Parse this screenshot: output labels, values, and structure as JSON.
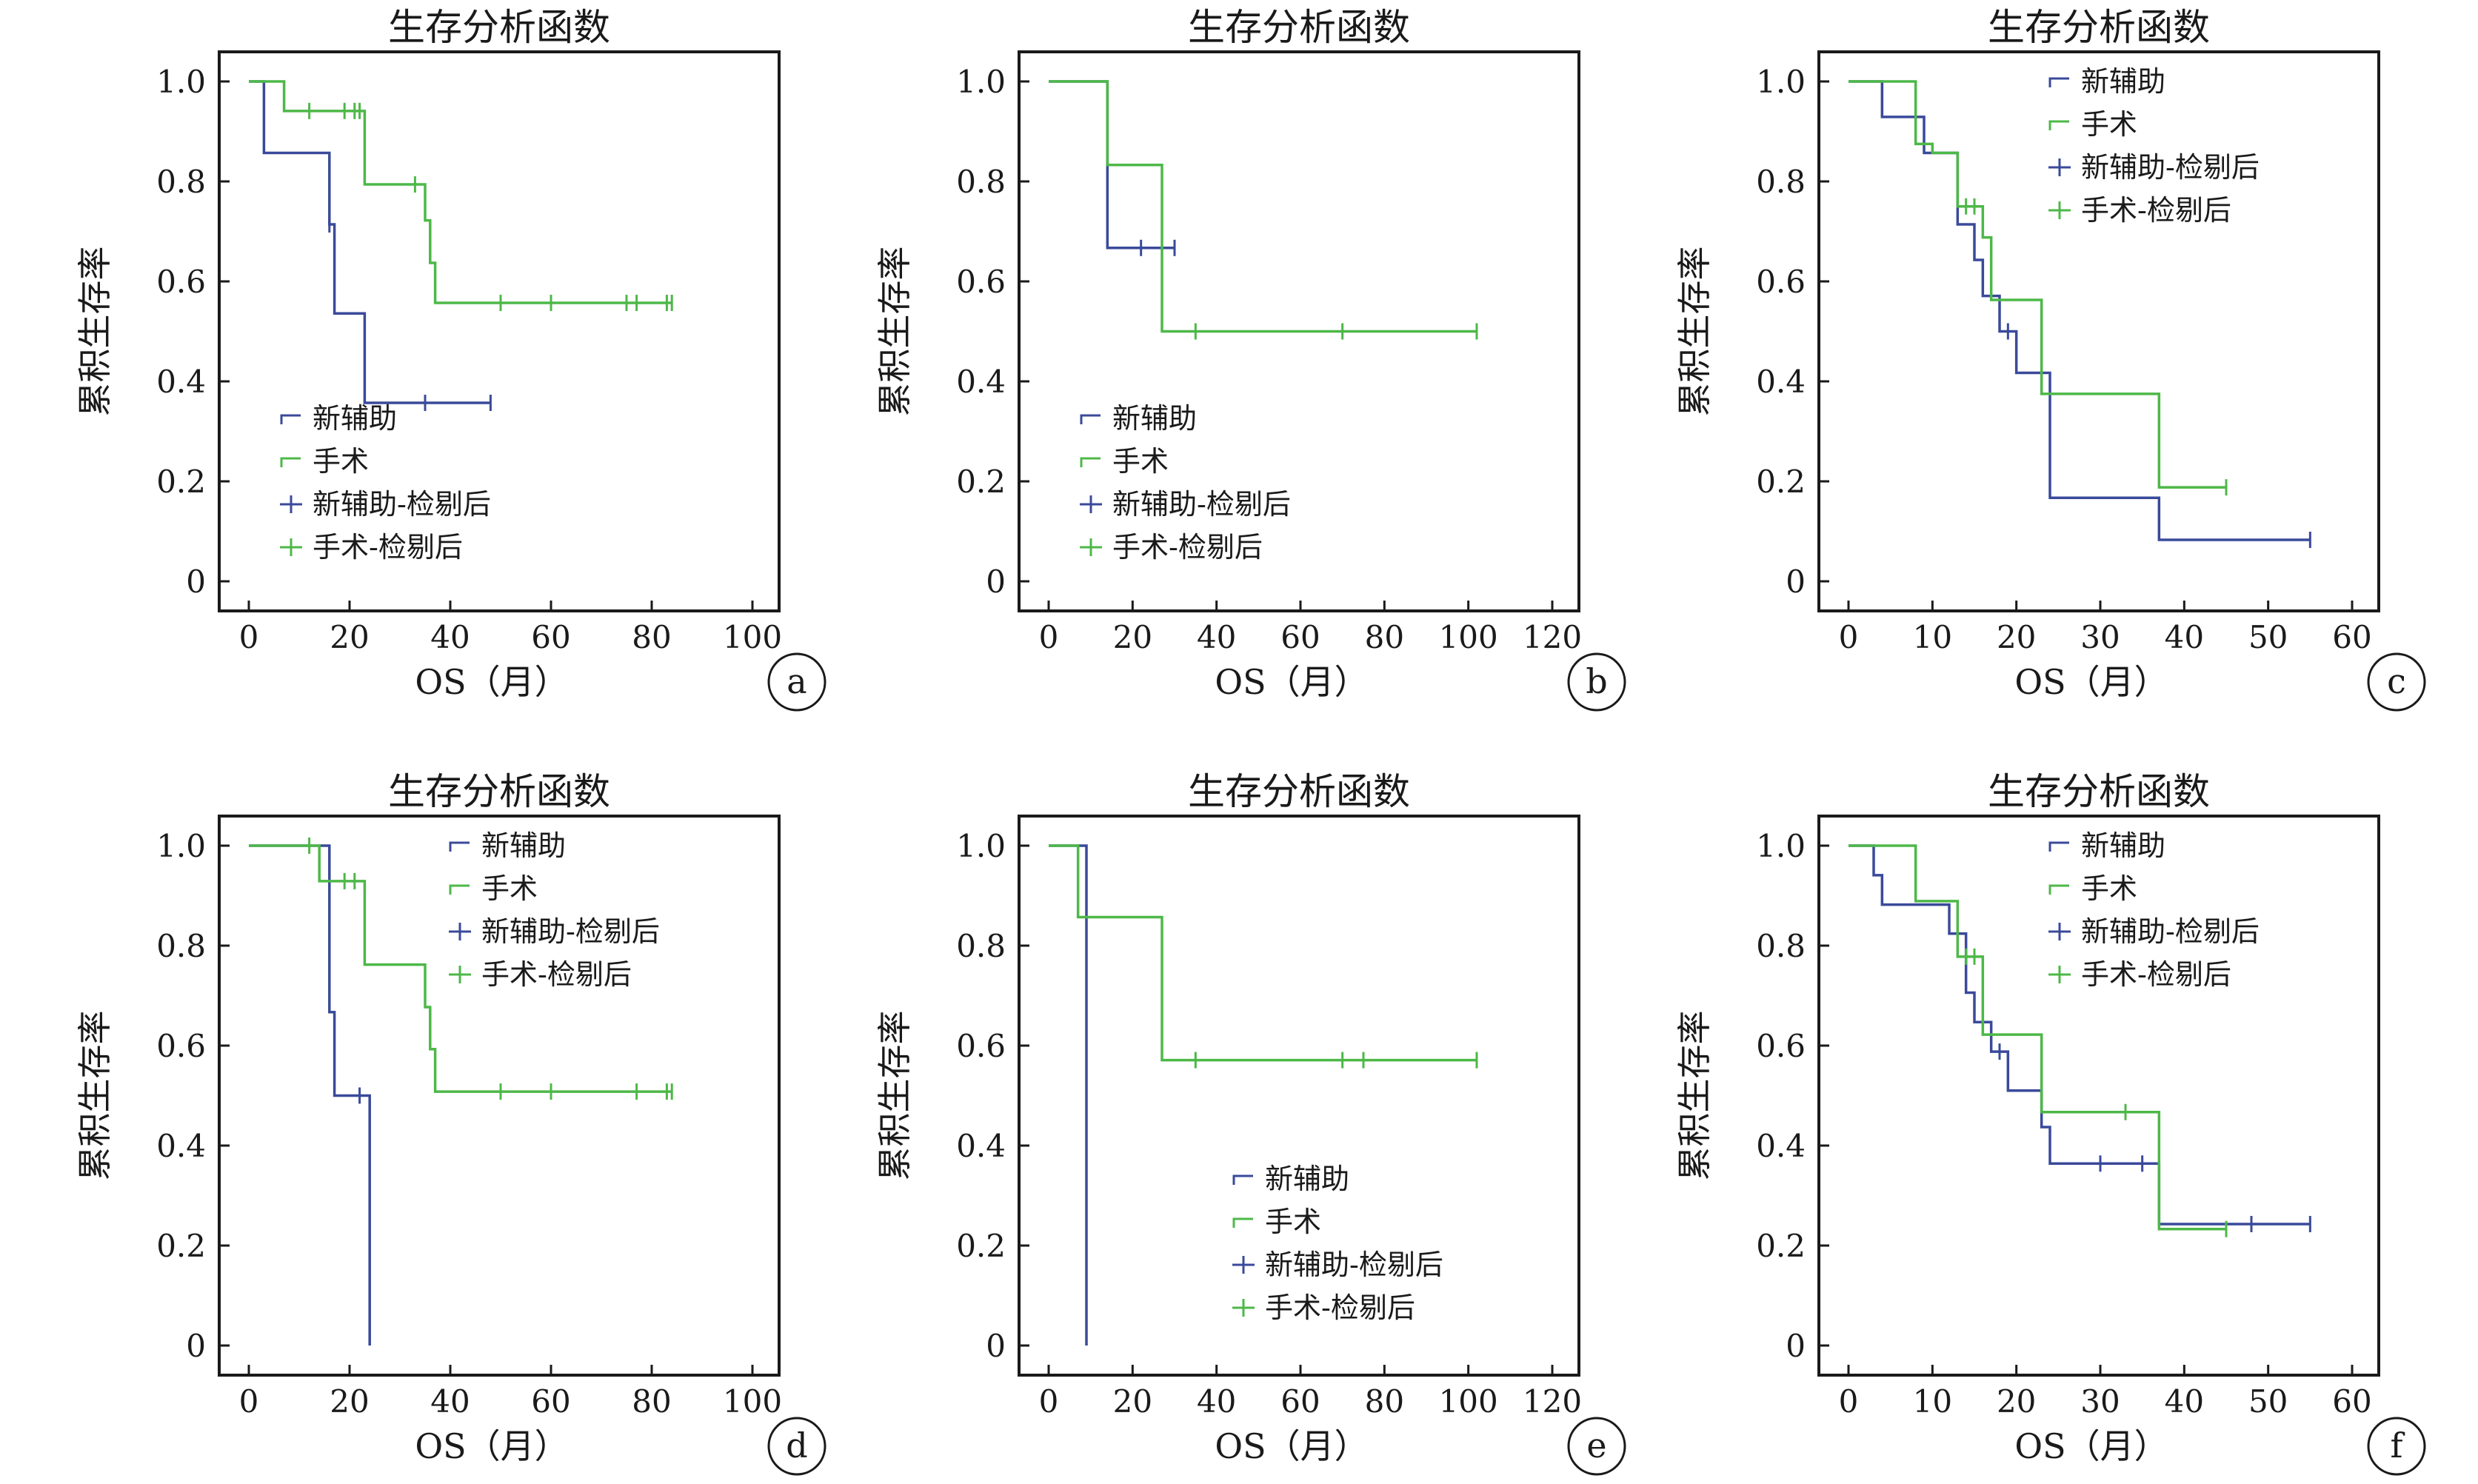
{
  "colors": {
    "series_blue": "#3a4a9a",
    "series_green": "#4db848",
    "text": "#1a1a1a"
  },
  "chart_data": [
    {
      "type": "line",
      "label": "a",
      "title": "生存分析函数",
      "xlabel": "OS（月）",
      "ylabel": "累积生存率",
      "xlim": [
        0,
        100
      ],
      "ylim": [
        0,
        1
      ],
      "xticks": [
        "0",
        "20",
        "40",
        "60",
        "80",
        "100"
      ],
      "yticks": [
        "0",
        "0.2",
        "0.4",
        "0.6",
        "0.8",
        "1.0"
      ],
      "legend": [
        "新辅助",
        "手术",
        "新辅助-检剔后",
        "手术-检剔后"
      ],
      "legend_position": "bottom-left",
      "series": [
        {
          "name": "新辅助",
          "step_x": [
            0,
            3,
            16,
            17,
            23,
            48
          ],
          "step_y": [
            1.0,
            0.857,
            0.714,
            0.536,
            0.357,
            0.357
          ],
          "censored_x": [
            16,
            35,
            48
          ],
          "censored_y": [
            0.714,
            0.357,
            0.357
          ]
        },
        {
          "name": "手术",
          "step_x": [
            0,
            7,
            23,
            35,
            36,
            37,
            84
          ],
          "step_y": [
            1.0,
            0.941,
            0.794,
            0.722,
            0.637,
            0.557,
            0.557
          ],
          "censored_x": [
            12,
            19,
            21,
            22,
            33,
            50,
            60,
            75,
            77,
            83,
            84
          ],
          "censored_y": [
            0.941,
            0.941,
            0.941,
            0.941,
            0.794,
            0.557,
            0.557,
            0.557,
            0.557,
            0.557,
            0.557
          ]
        }
      ]
    },
    {
      "type": "line",
      "label": "b",
      "title": "生存分析函数",
      "xlabel": "OS（月）",
      "ylabel": "累积生存率",
      "xlim": [
        0,
        120
      ],
      "ylim": [
        0,
        1
      ],
      "xticks": [
        "0",
        "20",
        "40",
        "60",
        "80",
        "100",
        "120"
      ],
      "yticks": [
        "0",
        "0.2",
        "0.4",
        "0.6",
        "0.8",
        "1.0"
      ],
      "legend": [
        "新辅助",
        "手术",
        "新辅助-检剔后",
        "手术-检剔后"
      ],
      "legend_position": "bottom-left",
      "series": [
        {
          "name": "新辅助",
          "step_x": [
            0,
            14,
            30
          ],
          "step_y": [
            1.0,
            0.667,
            0.667
          ],
          "censored_x": [
            22,
            30
          ],
          "censored_y": [
            0.667,
            0.667
          ]
        },
        {
          "name": "手术",
          "step_x": [
            0,
            14,
            27,
            102
          ],
          "step_y": [
            1.0,
            0.833,
            0.5,
            0.5
          ],
          "censored_x": [
            35,
            70,
            102
          ],
          "censored_y": [
            0.5,
            0.5,
            0.5
          ]
        }
      ]
    },
    {
      "type": "line",
      "label": "c",
      "title": "生存分析函数",
      "xlabel": "OS（月）",
      "ylabel": "累积生存率",
      "xlim": [
        0,
        60
      ],
      "ylim": [
        0,
        1
      ],
      "xticks": [
        "0",
        "10",
        "20",
        "30",
        "40",
        "50",
        "60"
      ],
      "yticks": [
        "0",
        "0.2",
        "0.4",
        "0.6",
        "0.8",
        "1.0"
      ],
      "legend": [
        "新辅助",
        "手术",
        "新辅助-检剔后",
        "手术-检剔后"
      ],
      "legend_position": "top-right",
      "series": [
        {
          "name": "新辅助",
          "step_x": [
            0,
            4,
            9,
            13,
            15,
            16,
            18,
            20,
            24,
            37,
            55
          ],
          "step_y": [
            1.0,
            0.929,
            0.857,
            0.714,
            0.643,
            0.571,
            0.5,
            0.417,
            0.167,
            0.083,
            0.083
          ],
          "censored_x": [
            19,
            55
          ],
          "censored_y": [
            0.5,
            0.083
          ]
        },
        {
          "name": "手术",
          "step_x": [
            0,
            8,
            10,
            13,
            16,
            17,
            20,
            23,
            37,
            45
          ],
          "step_y": [
            1.0,
            0.875,
            0.857,
            0.75,
            0.688,
            0.563,
            0.563,
            0.375,
            0.188,
            0.188
          ],
          "censored_x": [
            14,
            15,
            45
          ],
          "censored_y": [
            0.75,
            0.75,
            0.188
          ]
        }
      ]
    },
    {
      "type": "line",
      "label": "d",
      "title": "生存分析函数",
      "xlabel": "OS（月）",
      "ylabel": "累积生存率",
      "xlim": [
        0,
        100
      ],
      "ylim": [
        0,
        1
      ],
      "xticks": [
        "0",
        "20",
        "40",
        "60",
        "80",
        "100"
      ],
      "yticks": [
        "0",
        "0.2",
        "0.4",
        "0.6",
        "0.8",
        "1.0"
      ],
      "legend": [
        "新辅助",
        "手术",
        "新辅助-检剔后",
        "手术-检剔后"
      ],
      "legend_position": "top-right",
      "series": [
        {
          "name": "新辅助",
          "step_x": [
            0,
            16,
            17,
            24,
            24
          ],
          "step_y": [
            1.0,
            0.667,
            0.5,
            0.5,
            0.0
          ],
          "censored_x": [
            22
          ],
          "censored_y": [
            0.5
          ]
        },
        {
          "name": "手术",
          "step_x": [
            0,
            14,
            23,
            35,
            36,
            37,
            84
          ],
          "step_y": [
            1.0,
            0.929,
            0.762,
            0.677,
            0.593,
            0.508,
            0.508
          ],
          "censored_x": [
            12,
            19,
            21,
            50,
            60,
            77,
            83,
            84
          ],
          "censored_y": [
            1.0,
            0.929,
            0.929,
            0.508,
            0.508,
            0.508,
            0.508,
            0.508
          ]
        }
      ]
    },
    {
      "type": "line",
      "label": "e",
      "title": "生存分析函数",
      "xlabel": "OS（月）",
      "ylabel": "累积生存率",
      "xlim": [
        0,
        120
      ],
      "ylim": [
        0,
        1
      ],
      "xticks": [
        "0",
        "20",
        "40",
        "60",
        "80",
        "100",
        "120"
      ],
      "yticks": [
        "0",
        "0.2",
        "0.4",
        "0.6",
        "0.8",
        "1.0"
      ],
      "legend": [
        "新辅助",
        "手术",
        "新辅助-检剔后",
        "手术-检剔后"
      ],
      "legend_position": "bottom-right",
      "series": [
        {
          "name": "新辅助",
          "step_x": [
            0,
            9,
            9
          ],
          "step_y": [
            1.0,
            1.0,
            0.0
          ],
          "censored_x": [],
          "censored_y": []
        },
        {
          "name": "手术",
          "step_x": [
            0,
            7,
            27,
            102
          ],
          "step_y": [
            1.0,
            0.857,
            0.571,
            0.571
          ],
          "censored_x": [
            35,
            70,
            75,
            102
          ],
          "censored_y": [
            0.571,
            0.571,
            0.571,
            0.571
          ]
        }
      ]
    },
    {
      "type": "line",
      "label": "f",
      "title": "生存分析函数",
      "xlabel": "OS（月）",
      "ylabel": "累积生存率",
      "xlim": [
        0,
        60
      ],
      "ylim": [
        0,
        1
      ],
      "xticks": [
        "0",
        "10",
        "20",
        "30",
        "40",
        "50",
        "60"
      ],
      "yticks": [
        "0",
        "0.2",
        "0.4",
        "0.6",
        "0.8",
        "1.0"
      ],
      "legend": [
        "新辅助",
        "手术",
        "新辅助-检剔后",
        "手术-检剔后"
      ],
      "legend_position": "top-right",
      "series": [
        {
          "name": "新辅助",
          "step_x": [
            0,
            3,
            4,
            12,
            14,
            15,
            17,
            19,
            23,
            24,
            37,
            55
          ],
          "step_y": [
            1.0,
            0.941,
            0.882,
            0.824,
            0.706,
            0.647,
            0.588,
            0.51,
            0.437,
            0.364,
            0.243,
            0.243
          ],
          "censored_x": [
            18,
            30,
            35,
            48,
            55
          ],
          "censored_y": [
            0.588,
            0.364,
            0.364,
            0.243,
            0.243
          ]
        },
        {
          "name": "手术",
          "step_x": [
            0,
            8,
            13,
            16,
            23,
            37,
            45
          ],
          "step_y": [
            1.0,
            0.889,
            0.778,
            0.622,
            0.467,
            0.233,
            0.233
          ],
          "censored_x": [
            14,
            15,
            33,
            45
          ],
          "censored_y": [
            0.778,
            0.778,
            0.467,
            0.233
          ]
        }
      ]
    }
  ]
}
